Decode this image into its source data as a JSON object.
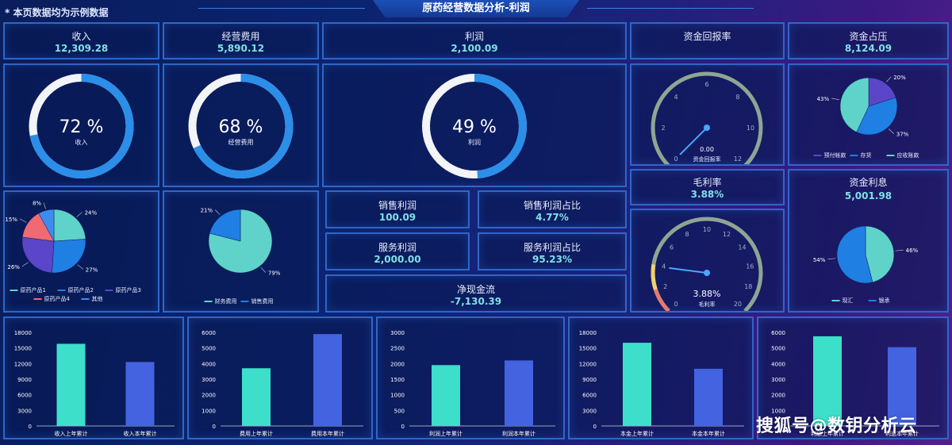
{
  "header": {
    "note": "* 本页数据均为示例数据",
    "title": "原药经营数据分析-利润"
  },
  "kpis": {
    "revenue": {
      "label": "收入",
      "value": "12,309.28"
    },
    "opex": {
      "label": "经营费用",
      "value": "5,890.12"
    },
    "profit": {
      "label": "利润",
      "value": "2,100.09"
    },
    "roi": {
      "label": "资金回报率"
    },
    "capital": {
      "label": "资金占压",
      "value": "8,124.09"
    },
    "gross_margin": {
      "label": "毛利率",
      "value": "3.88%"
    },
    "interest": {
      "label": "资金利息",
      "value": "5,001.98"
    },
    "sales_profit": {
      "label": "销售利润",
      "value": "100.09"
    },
    "sales_profit_ratio": {
      "label": "销售利润占比",
      "value": "4.77%"
    },
    "service_profit": {
      "label": "服务利润",
      "value": "2,000.00"
    },
    "service_profit_ratio": {
      "label": "服务利润占比",
      "value": "95.23%"
    },
    "net_cash": {
      "label": "净现金流",
      "value": "-7,130.39"
    }
  },
  "rings": [
    {
      "pct": 72,
      "text": "72 %",
      "label": "收入"
    },
    {
      "pct": 68,
      "text": "68 %",
      "label": "经营费用"
    },
    {
      "pct": 49,
      "text": "49 %",
      "label": "利润"
    }
  ],
  "gauges": [
    {
      "value": 0.0,
      "min": 0,
      "max": 12,
      "ticks": [
        "0",
        "2",
        "4",
        "6",
        "8",
        "10",
        "12"
      ],
      "readout": "0.00",
      "label": "资金回报率"
    },
    {
      "value": 3.88,
      "min": 0,
      "max": 20,
      "ticks": [
        "0",
        "2",
        "4",
        "6",
        "8",
        "10",
        "12",
        "14",
        "16",
        "18",
        "20"
      ],
      "readout": "3.88%",
      "label": "毛利率"
    }
  ],
  "colors": {
    "teal": "#5fd3c9",
    "blue": "#1f7fe3",
    "purple": "#5b45c8",
    "red": "#f06a73",
    "sky": "#3c8cf0",
    "bar1": "#3ddfca",
    "bar2": "#4463e0"
  },
  "chart_data": [
    {
      "type": "pie",
      "id": "capital_pie",
      "slices": [
        {
          "name": "预付帐款",
          "value": 20
        },
        {
          "name": "存货",
          "value": 37
        },
        {
          "name": "应收账款",
          "value": 43
        }
      ],
      "labels": [
        "20%",
        "37%",
        "43%"
      ]
    },
    {
      "type": "pie",
      "id": "product_pie",
      "slices": [
        {
          "name": "原药产品1",
          "value": 24
        },
        {
          "name": "原药产品2",
          "value": 27
        },
        {
          "name": "原药产品3",
          "value": 26
        },
        {
          "name": "原药产品4",
          "value": 15
        },
        {
          "name": "其他",
          "value": 8
        }
      ],
      "labels": [
        "24%",
        "27%",
        "26%",
        "15%",
        "8%"
      ]
    },
    {
      "type": "pie",
      "id": "expense_pie",
      "slices": [
        {
          "name": "财务费用",
          "value": 79
        },
        {
          "name": "销售费用",
          "value": 21
        }
      ],
      "labels": [
        "79%",
        "21%"
      ]
    },
    {
      "type": "pie",
      "id": "interest_pie",
      "slices": [
        {
          "name": "现汇",
          "value": 46
        },
        {
          "name": "银承",
          "value": 54
        }
      ],
      "labels": [
        "46%",
        "54%"
      ]
    },
    {
      "type": "bar",
      "id": "revenue_bar",
      "categories": [
        "收入上年累计",
        "收入本年累计"
      ],
      "values": [
        15800,
        12300
      ],
      "ylim": [
        0,
        18000
      ],
      "yticks": [
        "0",
        "3000",
        "6000",
        "9000",
        "12000",
        "15000",
        "18000"
      ]
    },
    {
      "type": "bar",
      "id": "expense_bar",
      "categories": [
        "费用上年累计",
        "费用本年累计"
      ],
      "values": [
        3700,
        5890
      ],
      "ylim": [
        0,
        6000
      ],
      "yticks": [
        "0",
        "1000",
        "2000",
        "3000",
        "4000",
        "5000",
        "6000"
      ]
    },
    {
      "type": "bar",
      "id": "profit_bar",
      "categories": [
        "利润上年累计",
        "利润本年累计"
      ],
      "values": [
        1950,
        2100
      ],
      "ylim": [
        0,
        3000
      ],
      "yticks": [
        "0",
        "500",
        "1000",
        "1500",
        "2000",
        "2500",
        "3000"
      ]
    },
    {
      "type": "bar",
      "id": "capital_bar",
      "categories": [
        "本金上年累计",
        "本金本年累计"
      ],
      "values": [
        16000,
        11000
      ],
      "ylim": [
        0,
        18000
      ],
      "yticks": [
        "0",
        "3000",
        "6000",
        "9000",
        "12000",
        "15000",
        "18000"
      ]
    },
    {
      "type": "bar",
      "id": "interest_bar",
      "categories": [
        "利息上年累计",
        "利息本年累计"
      ],
      "values": [
        5750,
        5050
      ],
      "ylim": [
        0,
        6000
      ],
      "yticks": [
        "0",
        "1000",
        "2000",
        "3000",
        "4000",
        "5000",
        "6000"
      ]
    }
  ],
  "watermark": "搜狐号@数钥分析云"
}
